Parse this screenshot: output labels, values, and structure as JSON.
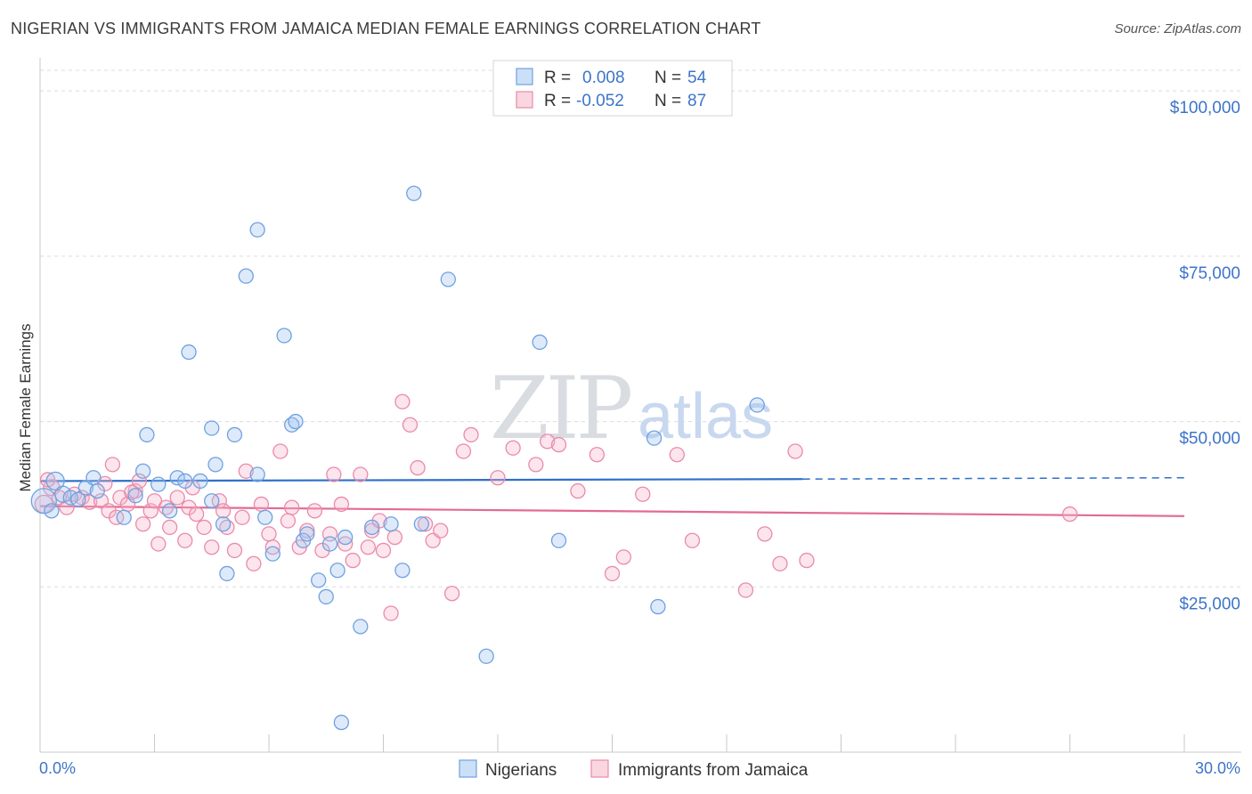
{
  "header": {
    "title": "NIGERIAN VS IMMIGRANTS FROM JAMAICA MEDIAN FEMALE EARNINGS CORRELATION CHART",
    "source": "Source: ZipAtlas.com"
  },
  "watermark": {
    "part1": "ZIP",
    "part2": "atlas"
  },
  "legend_top": {
    "rows": [
      {
        "r_label": "R =",
        "r_value": "0.008",
        "n_label": "N =",
        "n_value": "54"
      },
      {
        "r_label": "R =",
        "r_value": "-0.052",
        "n_label": "N =",
        "n_value": "87"
      }
    ]
  },
  "legend_bottom": {
    "items": [
      "Nigerians",
      "Immigrants from Jamaica"
    ]
  },
  "colors": {
    "blue": "#6fa1e0",
    "blue_fill": "rgba(160,196,240,0.35)",
    "blue_line": "#2f6fc9",
    "pink": "#ea8aaa",
    "pink_fill": "rgba(245,180,200,0.35)",
    "pink_line": "#e26a94",
    "grid": "#dcdcdc",
    "tick_text": "#3d74c9"
  },
  "chart_data": {
    "type": "scatter",
    "title": "NIGERIAN VS IMMIGRANTS FROM JAMAICA MEDIAN FEMALE EARNINGS CORRELATION CHART",
    "xlabel": "",
    "ylabel": "Median Female Earnings",
    "xlim": [
      0,
      30
    ],
    "ylim": [
      0,
      105000
    ],
    "x_tick_labels": [
      "0.0%",
      "30.0%"
    ],
    "y_ticks": [
      {
        "value": 25000,
        "label": "$25,000"
      },
      {
        "value": 50000,
        "label": "$50,000"
      },
      {
        "value": 75000,
        "label": "$75,000"
      },
      {
        "value": 100000,
        "label": "$100,000"
      }
    ],
    "series": [
      {
        "name": "Nigerians",
        "color": "blue",
        "trend": {
          "x0": 0.0,
          "y0": 41000,
          "x1": 20.0,
          "y1": 41300,
          "dash_to_x": 30.0,
          "dash_to_y": 41500
        },
        "points": [
          [
            0.1,
            38000,
            14
          ],
          [
            0.4,
            41000,
            10
          ],
          [
            0.6,
            39000,
            9
          ],
          [
            0.8,
            38500,
            8
          ],
          [
            1.2,
            40000,
            8
          ],
          [
            1.4,
            41500,
            8
          ],
          [
            1.5,
            39500,
            8
          ],
          [
            2.2,
            35500,
            8
          ],
          [
            2.5,
            38800,
            8
          ],
          [
            2.7,
            42500,
            8
          ],
          [
            2.8,
            48000,
            8
          ],
          [
            3.1,
            40500,
            8
          ],
          [
            3.6,
            41500,
            8
          ],
          [
            3.8,
            41000,
            8
          ],
          [
            3.4,
            36500,
            8
          ],
          [
            3.9,
            60500,
            8
          ],
          [
            4.2,
            41000,
            8
          ],
          [
            4.6,
            43500,
            8
          ],
          [
            4.5,
            38000,
            8
          ],
          [
            4.5,
            49000,
            8
          ],
          [
            4.8,
            34500,
            8
          ],
          [
            4.9,
            27000,
            8
          ],
          [
            5.1,
            48000,
            8
          ],
          [
            5.4,
            72000,
            8
          ],
          [
            5.7,
            79000,
            8
          ],
          [
            5.7,
            42000,
            8
          ],
          [
            5.9,
            35500,
            8
          ],
          [
            6.1,
            30000,
            8
          ],
          [
            6.4,
            63000,
            8
          ],
          [
            6.6,
            49500,
            8
          ],
          [
            6.7,
            50000,
            8
          ],
          [
            6.9,
            32000,
            8
          ],
          [
            7.0,
            33000,
            8
          ],
          [
            7.3,
            26000,
            8
          ],
          [
            7.5,
            23500,
            8
          ],
          [
            7.6,
            31500,
            8
          ],
          [
            7.8,
            27500,
            8
          ],
          [
            7.9,
            4500,
            8
          ],
          [
            8.0,
            32500,
            8
          ],
          [
            8.4,
            19000,
            8
          ],
          [
            8.7,
            34000,
            8
          ],
          [
            9.2,
            34500,
            8
          ],
          [
            9.5,
            27500,
            8
          ],
          [
            9.8,
            84500,
            8
          ],
          [
            10.0,
            34500,
            8
          ],
          [
            10.7,
            71500,
            8
          ],
          [
            11.7,
            14500,
            8
          ],
          [
            13.1,
            62000,
            8
          ],
          [
            13.6,
            32000,
            8
          ],
          [
            16.1,
            47500,
            8
          ],
          [
            16.2,
            22000,
            8
          ],
          [
            18.8,
            52500,
            8
          ],
          [
            0.3,
            36500,
            8
          ],
          [
            1.0,
            38200,
            8
          ]
        ]
      },
      {
        "name": "Immigrants from Jamaica",
        "color": "pink",
        "trend": {
          "x0": 0.0,
          "y0": 37200,
          "x1": 30.0,
          "y1": 35700
        },
        "points": [
          [
            0.1,
            37500,
            10
          ],
          [
            0.3,
            40000,
            9
          ],
          [
            0.5,
            38500,
            8
          ],
          [
            0.7,
            37000,
            8
          ],
          [
            0.9,
            39000,
            8
          ],
          [
            1.1,
            38500,
            8
          ],
          [
            1.3,
            37800,
            8
          ],
          [
            1.6,
            38000,
            8
          ],
          [
            1.8,
            36500,
            8
          ],
          [
            1.9,
            43500,
            8
          ],
          [
            2.0,
            35500,
            8
          ],
          [
            2.1,
            38500,
            8
          ],
          [
            2.3,
            37500,
            8
          ],
          [
            2.5,
            39500,
            8
          ],
          [
            2.6,
            41000,
            8
          ],
          [
            2.7,
            34500,
            8
          ],
          [
            2.9,
            36500,
            8
          ],
          [
            3.0,
            38000,
            8
          ],
          [
            3.1,
            31500,
            8
          ],
          [
            3.3,
            37000,
            8
          ],
          [
            3.4,
            34000,
            8
          ],
          [
            3.6,
            38500,
            8
          ],
          [
            3.8,
            32000,
            8
          ],
          [
            3.9,
            37000,
            8
          ],
          [
            4.0,
            40000,
            8
          ],
          [
            4.1,
            36000,
            8
          ],
          [
            4.3,
            34000,
            8
          ],
          [
            4.5,
            31000,
            8
          ],
          [
            4.7,
            38000,
            8
          ],
          [
            4.8,
            36500,
            8
          ],
          [
            4.9,
            34000,
            8
          ],
          [
            5.1,
            30500,
            8
          ],
          [
            5.3,
            35500,
            8
          ],
          [
            5.4,
            42500,
            8
          ],
          [
            5.6,
            28500,
            8
          ],
          [
            5.8,
            37500,
            8
          ],
          [
            6.0,
            33000,
            8
          ],
          [
            6.1,
            31000,
            8
          ],
          [
            6.3,
            45500,
            8
          ],
          [
            6.5,
            35000,
            8
          ],
          [
            6.6,
            37000,
            8
          ],
          [
            6.8,
            31000,
            8
          ],
          [
            7.0,
            33500,
            8
          ],
          [
            7.2,
            36500,
            8
          ],
          [
            7.4,
            30500,
            8
          ],
          [
            7.6,
            33000,
            8
          ],
          [
            7.7,
            42000,
            8
          ],
          [
            7.9,
            37500,
            8
          ],
          [
            8.0,
            31500,
            8
          ],
          [
            8.2,
            29000,
            8
          ],
          [
            8.4,
            42000,
            8
          ],
          [
            8.6,
            31000,
            8
          ],
          [
            8.7,
            33500,
            8
          ],
          [
            8.9,
            35000,
            8
          ],
          [
            9.0,
            30500,
            8
          ],
          [
            9.2,
            21000,
            8
          ],
          [
            9.3,
            32500,
            8
          ],
          [
            9.5,
            53000,
            8
          ],
          [
            9.7,
            49500,
            8
          ],
          [
            9.9,
            43000,
            8
          ],
          [
            10.1,
            34500,
            8
          ],
          [
            10.3,
            32000,
            8
          ],
          [
            10.5,
            33500,
            8
          ],
          [
            10.8,
            24000,
            8
          ],
          [
            11.1,
            45500,
            8
          ],
          [
            11.3,
            48000,
            8
          ],
          [
            12.0,
            41500,
            8
          ],
          [
            12.4,
            46000,
            8
          ],
          [
            13.0,
            43500,
            8
          ],
          [
            13.3,
            47000,
            8
          ],
          [
            13.6,
            46500,
            8
          ],
          [
            14.1,
            39500,
            8
          ],
          [
            14.6,
            45000,
            8
          ],
          [
            15.0,
            27000,
            8
          ],
          [
            15.3,
            29500,
            8
          ],
          [
            15.8,
            39000,
            8
          ],
          [
            16.7,
            45000,
            8
          ],
          [
            17.1,
            32000,
            8
          ],
          [
            18.5,
            24500,
            8
          ],
          [
            19.0,
            33000,
            8
          ],
          [
            19.4,
            28500,
            8
          ],
          [
            19.8,
            45500,
            8
          ],
          [
            20.1,
            29000,
            8
          ],
          [
            27.0,
            36000,
            8
          ],
          [
            2.4,
            39300,
            8
          ],
          [
            1.7,
            40600,
            8
          ],
          [
            0.2,
            41200,
            8
          ]
        ]
      }
    ]
  }
}
